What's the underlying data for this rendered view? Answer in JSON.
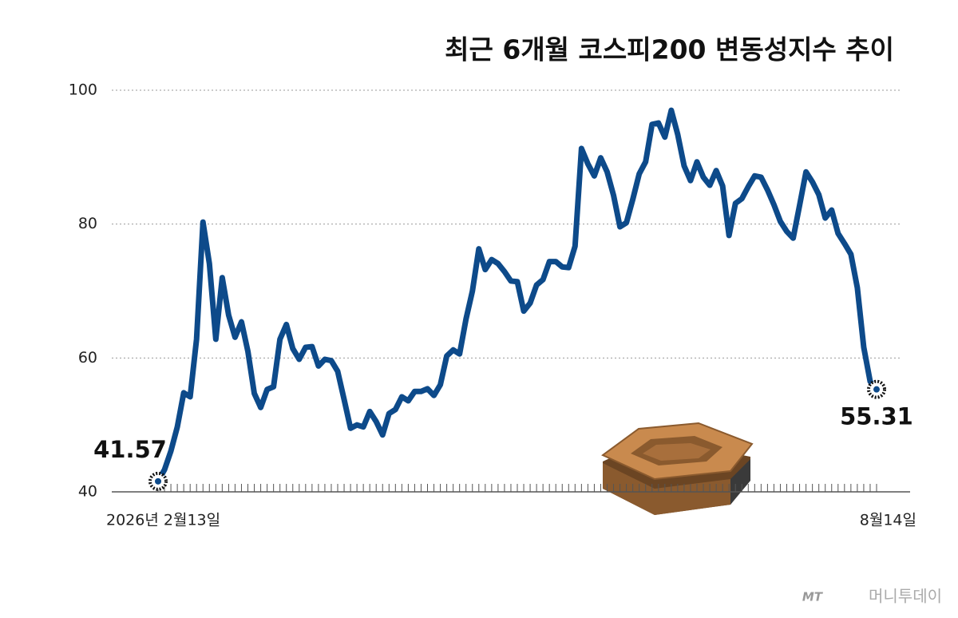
{
  "chart_data": {
    "type": "line",
    "title": "최근 6개월 코스피200 변동성지수 추이",
    "categories": [
      "2026년 2월13일",
      null,
      null,
      null,
      null,
      null,
      null,
      null,
      null,
      null,
      null,
      null,
      null,
      null,
      null,
      null,
      null,
      null,
      null,
      null,
      null,
      null,
      null,
      null,
      null,
      null,
      null,
      null,
      null,
      null,
      null,
      null,
      null,
      null,
      null,
      null,
      null,
      null,
      null,
      null,
      null,
      null,
      null,
      null,
      null,
      null,
      null,
      null,
      null,
      null,
      null,
      null,
      null,
      null,
      null,
      null,
      null,
      null,
      null,
      null,
      null,
      null,
      null,
      null,
      null,
      null,
      null,
      null,
      null,
      null,
      null,
      null,
      null,
      null,
      null,
      null,
      null,
      null,
      null,
      null,
      null,
      null,
      null,
      null,
      null,
      null,
      null,
      null,
      null,
      null,
      null,
      null,
      null,
      null,
      null,
      null,
      null,
      null,
      null,
      null,
      null,
      null,
      null,
      null,
      null,
      null,
      null,
      null,
      null,
      null,
      null,
      null,
      "8월14일"
    ],
    "series": [
      {
        "name": "코스피200 변동성지수",
        "color": "#0d4a8a",
        "values": [
          41.57,
          43.3,
          46.1,
          49.7,
          54.8,
          54.2,
          62.8,
          80.3,
          74.1,
          62.8,
          72,
          66.4,
          63.1,
          65.4,
          61,
          54.7,
          52.6,
          55.3,
          55.7,
          62.8,
          65,
          61.4,
          59.8,
          61.6,
          61.7,
          58.8,
          59.8,
          59.6,
          58,
          53.8,
          49.5,
          50,
          49.7,
          52,
          50.5,
          48.5,
          51.7,
          52.3,
          54.2,
          53.6,
          55,
          55,
          55.4,
          54.4,
          56,
          60.3,
          61.2,
          60.6,
          65.8,
          70,
          76.3,
          73.2,
          74.7,
          74.1,
          72.9,
          71.5,
          71.4,
          67,
          68.2,
          70.9,
          71.7,
          74.4,
          74.4,
          73.6,
          73.5,
          76.7,
          91.3,
          89,
          87.2,
          89.9,
          87.8,
          84.3,
          79.6,
          80.2,
          83.7,
          87.5,
          89.3,
          94.9,
          95.1,
          93,
          97,
          93.4,
          88.7,
          86.5,
          89.3,
          87,
          85.8,
          88,
          85.7,
          78.3,
          83.1,
          83.8,
          85.6,
          87.2,
          87,
          85.1,
          82.9,
          80.4,
          78.9,
          77.9,
          82.8,
          87.8,
          86.3,
          84.4,
          80.9,
          82.1,
          78.6,
          77.1,
          75.5,
          70.5,
          61.6,
          56.5,
          55.31
        ]
      }
    ],
    "ylim": [
      40,
      100
    ],
    "yticks": [
      40,
      60,
      80,
      100
    ],
    "grid": true
  },
  "footer": {
    "logo": "MT",
    "brand": "머니투데이"
  }
}
